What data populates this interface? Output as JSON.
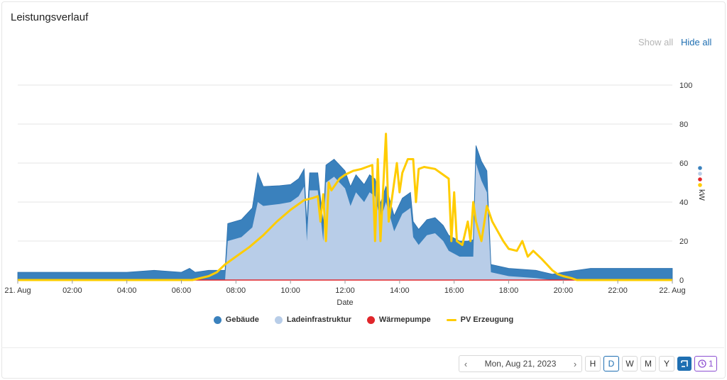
{
  "card": {
    "title": "Leistungsverlauf",
    "show_all": "Show all",
    "hide_all": "Hide all"
  },
  "footer": {
    "prev_icon": "chevron-left-icon",
    "next_icon": "chevron-right-icon",
    "date": "Mon, Aug 21, 2023",
    "periods": [
      "H",
      "D",
      "W",
      "M",
      "Y"
    ],
    "active_period": "D",
    "history_icon": "clock-icon",
    "history_count": "1",
    "square_icon": "bracket-icon"
  },
  "colors": {
    "gebaeude": "#3a81bd",
    "ladeinfrastruktur": "#b8cde8",
    "waermepumpe": "#e0262b",
    "pv": "#ffcc00",
    "accent": "#1f6fb2"
  },
  "chart_data": {
    "type": "area",
    "xlabel": "Date",
    "ylabel": "kW",
    "ylim": [
      0,
      100
    ],
    "yticks": [
      0,
      20,
      40,
      60,
      80,
      100
    ],
    "xlim": [
      0,
      24
    ],
    "xticks": [
      {
        "h": 0,
        "label": "21. Aug"
      },
      {
        "h": 2,
        "label": "02:00"
      },
      {
        "h": 4,
        "label": "04:00"
      },
      {
        "h": 6,
        "label": "06:00"
      },
      {
        "h": 8,
        "label": "08:00"
      },
      {
        "h": 10,
        "label": "10:00"
      },
      {
        "h": 12,
        "label": "12:00"
      },
      {
        "h": 14,
        "label": "14:00"
      },
      {
        "h": 16,
        "label": "16:00"
      },
      {
        "h": 18,
        "label": "18:00"
      },
      {
        "h": 20,
        "label": "20:00"
      },
      {
        "h": 22,
        "label": "22:00"
      },
      {
        "h": 24,
        "label": "22. Aug"
      }
    ],
    "legend": [
      "Gebäude",
      "Ladeinfrastruktur",
      "Wärmepumpe",
      "PV Erzeugung"
    ],
    "series": [
      {
        "name": "Ladeinfrastruktur",
        "style": "area-stacked",
        "points": [
          [
            0,
            0
          ],
          [
            7.6,
            0
          ],
          [
            7.7,
            20
          ],
          [
            8.2,
            22
          ],
          [
            8.6,
            27
          ],
          [
            8.8,
            40
          ],
          [
            9.0,
            38
          ],
          [
            9.6,
            39
          ],
          [
            10.0,
            40
          ],
          [
            10.3,
            43
          ],
          [
            10.5,
            48
          ],
          [
            10.6,
            20
          ],
          [
            10.7,
            46
          ],
          [
            11.0,
            46
          ],
          [
            11.2,
            20
          ],
          [
            11.3,
            50
          ],
          [
            11.6,
            53
          ],
          [
            12.0,
            47
          ],
          [
            12.2,
            38
          ],
          [
            12.4,
            45
          ],
          [
            12.7,
            40
          ],
          [
            12.9,
            45
          ],
          [
            13.1,
            43
          ],
          [
            13.3,
            31
          ],
          [
            13.5,
            40
          ],
          [
            13.8,
            25
          ],
          [
            14.1,
            34
          ],
          [
            14.4,
            37
          ],
          [
            14.5,
            22
          ],
          [
            14.7,
            18
          ],
          [
            15.0,
            23
          ],
          [
            15.3,
            24
          ],
          [
            15.6,
            20
          ],
          [
            15.8,
            15
          ],
          [
            16.2,
            12
          ],
          [
            16.5,
            12
          ],
          [
            16.7,
            12
          ],
          [
            16.8,
            60
          ],
          [
            17.0,
            51
          ],
          [
            17.2,
            45
          ],
          [
            17.35,
            4
          ],
          [
            18.0,
            2
          ],
          [
            19.0,
            1
          ],
          [
            19.6,
            0
          ],
          [
            24,
            0
          ]
        ]
      },
      {
        "name": "Gebäude",
        "style": "area-stacked",
        "points": [
          [
            0,
            4
          ],
          [
            2,
            4
          ],
          [
            4,
            4
          ],
          [
            5,
            5
          ],
          [
            6,
            4
          ],
          [
            6.3,
            6
          ],
          [
            6.5,
            4
          ],
          [
            7.0,
            5
          ],
          [
            7.6,
            5
          ],
          [
            7.7,
            9
          ],
          [
            8.2,
            9
          ],
          [
            8.6,
            10
          ],
          [
            8.8,
            15
          ],
          [
            9.0,
            10
          ],
          [
            10.0,
            9
          ],
          [
            10.5,
            9
          ],
          [
            11.0,
            9
          ],
          [
            11.3,
            9
          ],
          [
            11.6,
            9
          ],
          [
            12.0,
            9
          ],
          [
            12.2,
            10
          ],
          [
            12.4,
            9
          ],
          [
            13.0,
            9
          ],
          [
            13.5,
            8
          ],
          [
            14.0,
            8
          ],
          [
            14.5,
            8
          ],
          [
            15.0,
            8
          ],
          [
            15.5,
            8
          ],
          [
            16.0,
            8
          ],
          [
            16.5,
            8
          ],
          [
            16.8,
            9
          ],
          [
            17.0,
            10
          ],
          [
            17.2,
            11
          ],
          [
            17.35,
            4
          ],
          [
            18.0,
            4
          ],
          [
            19.0,
            4
          ],
          [
            19.6,
            3
          ],
          [
            20.0,
            4
          ],
          [
            21.0,
            6
          ],
          [
            22.0,
            6
          ],
          [
            23.0,
            6
          ],
          [
            24,
            6
          ]
        ]
      },
      {
        "name": "Wärmepumpe",
        "style": "line",
        "points": [
          [
            0,
            0
          ],
          [
            24,
            0
          ]
        ]
      },
      {
        "name": "PV Erzeugung",
        "style": "line",
        "points": [
          [
            0,
            0
          ],
          [
            6.4,
            0
          ],
          [
            7.0,
            2
          ],
          [
            7.3,
            4
          ],
          [
            7.6,
            8
          ],
          [
            8.0,
            12
          ],
          [
            8.5,
            17
          ],
          [
            9.0,
            23
          ],
          [
            9.5,
            30
          ],
          [
            10.0,
            36
          ],
          [
            10.5,
            41
          ],
          [
            10.8,
            42
          ],
          [
            11.0,
            43
          ],
          [
            11.1,
            30
          ],
          [
            11.2,
            44
          ],
          [
            11.3,
            20
          ],
          [
            11.4,
            50
          ],
          [
            11.5,
            46
          ],
          [
            11.8,
            52
          ],
          [
            12.0,
            54
          ],
          [
            12.3,
            56
          ],
          [
            12.6,
            57
          ],
          [
            12.8,
            58
          ],
          [
            13.0,
            59
          ],
          [
            13.1,
            20
          ],
          [
            13.2,
            62
          ],
          [
            13.3,
            20
          ],
          [
            13.5,
            75
          ],
          [
            13.6,
            30
          ],
          [
            13.7,
            40
          ],
          [
            13.9,
            60
          ],
          [
            14.0,
            45
          ],
          [
            14.1,
            55
          ],
          [
            14.3,
            62
          ],
          [
            14.5,
            62
          ],
          [
            14.6,
            40
          ],
          [
            14.7,
            57
          ],
          [
            14.9,
            58
          ],
          [
            15.3,
            57
          ],
          [
            15.6,
            54
          ],
          [
            15.8,
            52
          ],
          [
            15.9,
            20
          ],
          [
            16.0,
            45
          ],
          [
            16.1,
            20
          ],
          [
            16.3,
            18
          ],
          [
            16.5,
            30
          ],
          [
            16.6,
            20
          ],
          [
            16.7,
            40
          ],
          [
            16.8,
            30
          ],
          [
            17.0,
            20
          ],
          [
            17.2,
            38
          ],
          [
            17.4,
            30
          ],
          [
            17.6,
            25
          ],
          [
            17.8,
            20
          ],
          [
            18.0,
            16
          ],
          [
            18.3,
            15
          ],
          [
            18.5,
            20
          ],
          [
            18.7,
            12
          ],
          [
            18.9,
            15
          ],
          [
            19.2,
            11
          ],
          [
            19.4,
            8
          ],
          [
            19.6,
            5
          ],
          [
            19.8,
            3
          ],
          [
            20.0,
            2
          ],
          [
            20.3,
            1
          ],
          [
            20.5,
            0
          ],
          [
            24,
            0
          ]
        ]
      }
    ]
  }
}
